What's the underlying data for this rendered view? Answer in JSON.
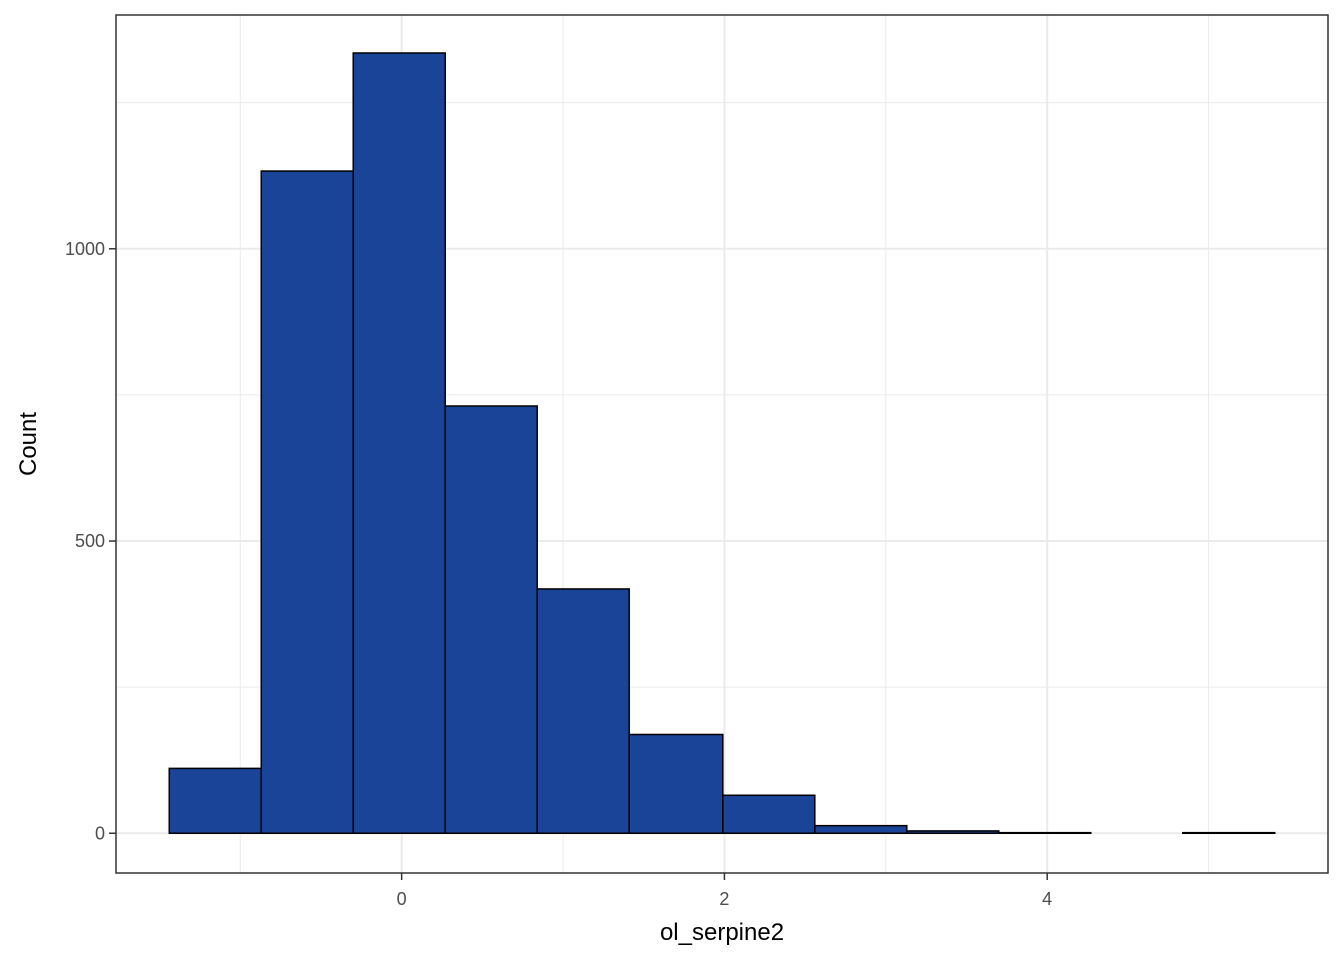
{
  "chart_data": {
    "type": "bar",
    "title": "",
    "xlabel": "ol_serpine2",
    "ylabel": "Count",
    "bins": [
      {
        "x0": -1.44,
        "x1": -0.87,
        "count": 111
      },
      {
        "x0": -0.87,
        "x1": -0.3,
        "count": 1133
      },
      {
        "x0": -0.3,
        "x1": 0.27,
        "count": 1335
      },
      {
        "x0": 0.27,
        "x1": 0.84,
        "count": 731
      },
      {
        "x0": 0.84,
        "x1": 1.41,
        "count": 418
      },
      {
        "x0": 1.41,
        "x1": 1.99,
        "count": 169
      },
      {
        "x0": 1.99,
        "x1": 2.56,
        "count": 65
      },
      {
        "x0": 2.56,
        "x1": 3.13,
        "count": 13
      },
      {
        "x0": 3.13,
        "x1": 3.7,
        "count": 4
      },
      {
        "x0": 3.7,
        "x1": 4.27,
        "count": 1
      },
      {
        "x0": 4.27,
        "x1": 4.84,
        "count": 0
      },
      {
        "x0": 4.84,
        "x1": 5.41,
        "count": 1
      }
    ],
    "xlim": [
      -1.77,
      5.74
    ],
    "ylim": [
      -68,
      1400
    ],
    "x_ticks": [
      0,
      2,
      4
    ],
    "x_tick_labels": [
      "0",
      "2",
      "4"
    ],
    "x_minor_ticks": [
      -1,
      1,
      3,
      5
    ],
    "y_ticks": [
      0,
      500,
      1000
    ],
    "y_tick_labels": [
      "0",
      "500",
      "1000"
    ],
    "y_minor_ticks": [
      250,
      750,
      1250
    ],
    "grid": true,
    "legend": "none",
    "colors": {
      "bar_fill": "#194498",
      "bar_stroke": "#000000",
      "grid": "#ebebeb",
      "panel_border": "#333333",
      "tick_text": "#4d4d4d"
    }
  }
}
